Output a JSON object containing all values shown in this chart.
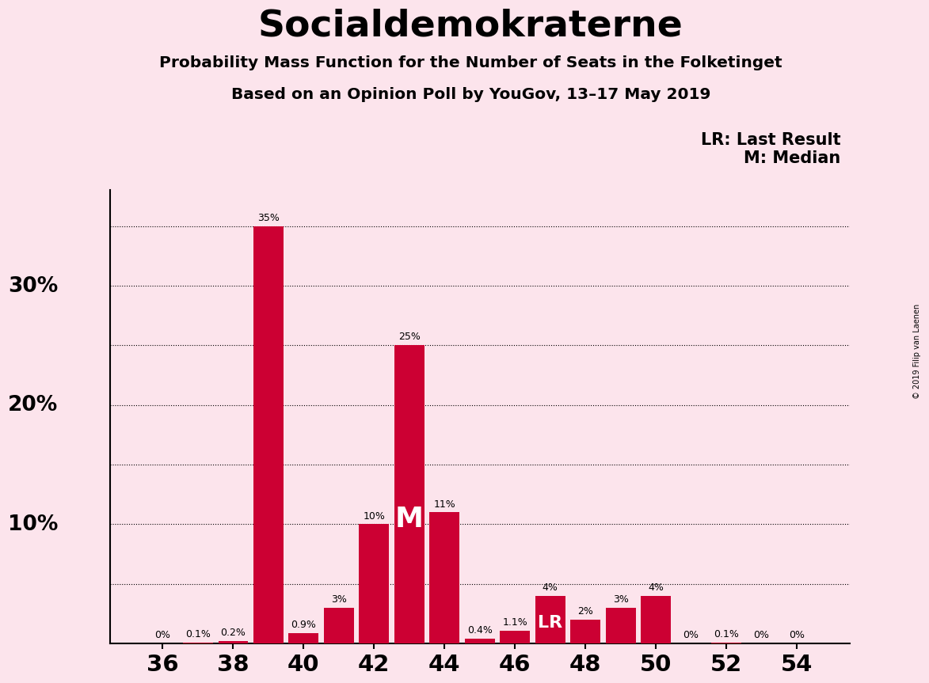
{
  "title": "Socialdemokraterne",
  "subtitle1": "Probability Mass Function for the Number of Seats in the Folketinget",
  "subtitle2": "Based on an Opinion Poll by YouGov, 13–17 May 2019",
  "copyright": "© 2019 Filip van Laenen",
  "legend_lr": "LR: Last Result",
  "legend_m": "M: Median",
  "background_color": "#fce4ec",
  "bar_color": "#cc0033",
  "seats": [
    36,
    37,
    38,
    39,
    40,
    41,
    42,
    43,
    44,
    45,
    46,
    47,
    48,
    49,
    50,
    51,
    52,
    53,
    54
  ],
  "values": [
    0.0,
    0.1,
    0.2,
    35.0,
    0.9,
    3.0,
    10.0,
    25.0,
    11.0,
    0.4,
    1.1,
    4.0,
    2.0,
    3.0,
    4.0,
    0.0,
    0.1,
    0.0,
    0.0
  ],
  "labels": [
    "0%",
    "0.1%",
    "0.2%",
    "35%",
    "0.9%",
    "3%",
    "10%",
    "25%",
    "11%",
    "0.4%",
    "1.1%",
    "4%",
    "2%",
    "3%",
    "4%",
    "0%",
    "0.1%",
    "0%",
    "0%"
  ],
  "median_seat": 43,
  "lr_seat": 47,
  "ylim": [
    0,
    38
  ],
  "xlim": [
    34.5,
    55.5
  ],
  "ylabel_vals": [
    10,
    20,
    30
  ],
  "ylabel_labels": [
    "10%",
    "20%",
    "30%"
  ],
  "hgrid_vals": [
    5,
    10,
    15,
    20,
    25,
    30,
    35
  ],
  "xtick_positions": [
    36,
    38,
    40,
    42,
    44,
    46,
    48,
    50,
    52,
    54
  ]
}
